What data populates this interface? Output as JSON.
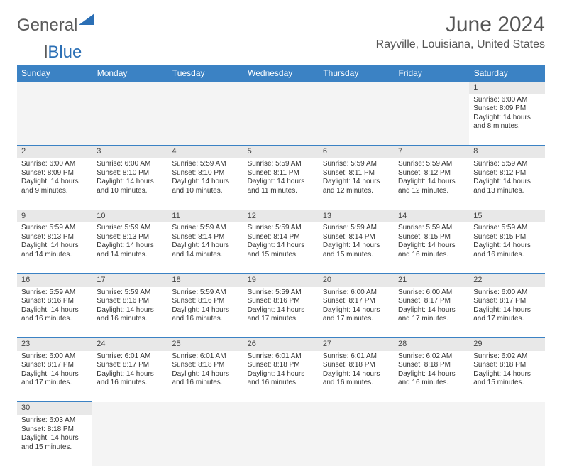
{
  "brand": {
    "part1": "General",
    "part2_l": "l",
    "part2_rest": "Blue"
  },
  "title": "June 2024",
  "location": "Rayville, Louisiana, United States",
  "colors": {
    "header_bg": "#3b82c4",
    "header_text": "#ffffff",
    "daynum_bg": "#e8e8e8",
    "blank_bg": "#f4f4f4",
    "row_divider": "#3b82c4",
    "brand_gray": "#5a5a5a",
    "brand_blue": "#2b6fb5",
    "text": "#333333"
  },
  "typography": {
    "title_fontsize": 30,
    "location_fontsize": 16,
    "weekday_fontsize": 12,
    "daynum_fontsize": 11,
    "cell_fontsize": 10
  },
  "weekdays": [
    "Sunday",
    "Monday",
    "Tuesday",
    "Wednesday",
    "Thursday",
    "Friday",
    "Saturday"
  ],
  "weeks": [
    [
      null,
      null,
      null,
      null,
      null,
      null,
      {
        "n": "1",
        "sunrise": "Sunrise: 6:00 AM",
        "sunset": "Sunset: 8:09 PM",
        "daylight1": "Daylight: 14 hours",
        "daylight2": "and 8 minutes."
      }
    ],
    [
      {
        "n": "2",
        "sunrise": "Sunrise: 6:00 AM",
        "sunset": "Sunset: 8:09 PM",
        "daylight1": "Daylight: 14 hours",
        "daylight2": "and 9 minutes."
      },
      {
        "n": "3",
        "sunrise": "Sunrise: 6:00 AM",
        "sunset": "Sunset: 8:10 PM",
        "daylight1": "Daylight: 14 hours",
        "daylight2": "and 10 minutes."
      },
      {
        "n": "4",
        "sunrise": "Sunrise: 5:59 AM",
        "sunset": "Sunset: 8:10 PM",
        "daylight1": "Daylight: 14 hours",
        "daylight2": "and 10 minutes."
      },
      {
        "n": "5",
        "sunrise": "Sunrise: 5:59 AM",
        "sunset": "Sunset: 8:11 PM",
        "daylight1": "Daylight: 14 hours",
        "daylight2": "and 11 minutes."
      },
      {
        "n": "6",
        "sunrise": "Sunrise: 5:59 AM",
        "sunset": "Sunset: 8:11 PM",
        "daylight1": "Daylight: 14 hours",
        "daylight2": "and 12 minutes."
      },
      {
        "n": "7",
        "sunrise": "Sunrise: 5:59 AM",
        "sunset": "Sunset: 8:12 PM",
        "daylight1": "Daylight: 14 hours",
        "daylight2": "and 12 minutes."
      },
      {
        "n": "8",
        "sunrise": "Sunrise: 5:59 AM",
        "sunset": "Sunset: 8:12 PM",
        "daylight1": "Daylight: 14 hours",
        "daylight2": "and 13 minutes."
      }
    ],
    [
      {
        "n": "9",
        "sunrise": "Sunrise: 5:59 AM",
        "sunset": "Sunset: 8:13 PM",
        "daylight1": "Daylight: 14 hours",
        "daylight2": "and 14 minutes."
      },
      {
        "n": "10",
        "sunrise": "Sunrise: 5:59 AM",
        "sunset": "Sunset: 8:13 PM",
        "daylight1": "Daylight: 14 hours",
        "daylight2": "and 14 minutes."
      },
      {
        "n": "11",
        "sunrise": "Sunrise: 5:59 AM",
        "sunset": "Sunset: 8:14 PM",
        "daylight1": "Daylight: 14 hours",
        "daylight2": "and 14 minutes."
      },
      {
        "n": "12",
        "sunrise": "Sunrise: 5:59 AM",
        "sunset": "Sunset: 8:14 PM",
        "daylight1": "Daylight: 14 hours",
        "daylight2": "and 15 minutes."
      },
      {
        "n": "13",
        "sunrise": "Sunrise: 5:59 AM",
        "sunset": "Sunset: 8:14 PM",
        "daylight1": "Daylight: 14 hours",
        "daylight2": "and 15 minutes."
      },
      {
        "n": "14",
        "sunrise": "Sunrise: 5:59 AM",
        "sunset": "Sunset: 8:15 PM",
        "daylight1": "Daylight: 14 hours",
        "daylight2": "and 16 minutes."
      },
      {
        "n": "15",
        "sunrise": "Sunrise: 5:59 AM",
        "sunset": "Sunset: 8:15 PM",
        "daylight1": "Daylight: 14 hours",
        "daylight2": "and 16 minutes."
      }
    ],
    [
      {
        "n": "16",
        "sunrise": "Sunrise: 5:59 AM",
        "sunset": "Sunset: 8:16 PM",
        "daylight1": "Daylight: 14 hours",
        "daylight2": "and 16 minutes."
      },
      {
        "n": "17",
        "sunrise": "Sunrise: 5:59 AM",
        "sunset": "Sunset: 8:16 PM",
        "daylight1": "Daylight: 14 hours",
        "daylight2": "and 16 minutes."
      },
      {
        "n": "18",
        "sunrise": "Sunrise: 5:59 AM",
        "sunset": "Sunset: 8:16 PM",
        "daylight1": "Daylight: 14 hours",
        "daylight2": "and 16 minutes."
      },
      {
        "n": "19",
        "sunrise": "Sunrise: 5:59 AM",
        "sunset": "Sunset: 8:16 PM",
        "daylight1": "Daylight: 14 hours",
        "daylight2": "and 17 minutes."
      },
      {
        "n": "20",
        "sunrise": "Sunrise: 6:00 AM",
        "sunset": "Sunset: 8:17 PM",
        "daylight1": "Daylight: 14 hours",
        "daylight2": "and 17 minutes."
      },
      {
        "n": "21",
        "sunrise": "Sunrise: 6:00 AM",
        "sunset": "Sunset: 8:17 PM",
        "daylight1": "Daylight: 14 hours",
        "daylight2": "and 17 minutes."
      },
      {
        "n": "22",
        "sunrise": "Sunrise: 6:00 AM",
        "sunset": "Sunset: 8:17 PM",
        "daylight1": "Daylight: 14 hours",
        "daylight2": "and 17 minutes."
      }
    ],
    [
      {
        "n": "23",
        "sunrise": "Sunrise: 6:00 AM",
        "sunset": "Sunset: 8:17 PM",
        "daylight1": "Daylight: 14 hours",
        "daylight2": "and 17 minutes."
      },
      {
        "n": "24",
        "sunrise": "Sunrise: 6:01 AM",
        "sunset": "Sunset: 8:17 PM",
        "daylight1": "Daylight: 14 hours",
        "daylight2": "and 16 minutes."
      },
      {
        "n": "25",
        "sunrise": "Sunrise: 6:01 AM",
        "sunset": "Sunset: 8:18 PM",
        "daylight1": "Daylight: 14 hours",
        "daylight2": "and 16 minutes."
      },
      {
        "n": "26",
        "sunrise": "Sunrise: 6:01 AM",
        "sunset": "Sunset: 8:18 PM",
        "daylight1": "Daylight: 14 hours",
        "daylight2": "and 16 minutes."
      },
      {
        "n": "27",
        "sunrise": "Sunrise: 6:01 AM",
        "sunset": "Sunset: 8:18 PM",
        "daylight1": "Daylight: 14 hours",
        "daylight2": "and 16 minutes."
      },
      {
        "n": "28",
        "sunrise": "Sunrise: 6:02 AM",
        "sunset": "Sunset: 8:18 PM",
        "daylight1": "Daylight: 14 hours",
        "daylight2": "and 16 minutes."
      },
      {
        "n": "29",
        "sunrise": "Sunrise: 6:02 AM",
        "sunset": "Sunset: 8:18 PM",
        "daylight1": "Daylight: 14 hours",
        "daylight2": "and 15 minutes."
      }
    ],
    [
      {
        "n": "30",
        "sunrise": "Sunrise: 6:03 AM",
        "sunset": "Sunset: 8:18 PM",
        "daylight1": "Daylight: 14 hours",
        "daylight2": "and 15 minutes."
      },
      null,
      null,
      null,
      null,
      null,
      null
    ]
  ]
}
